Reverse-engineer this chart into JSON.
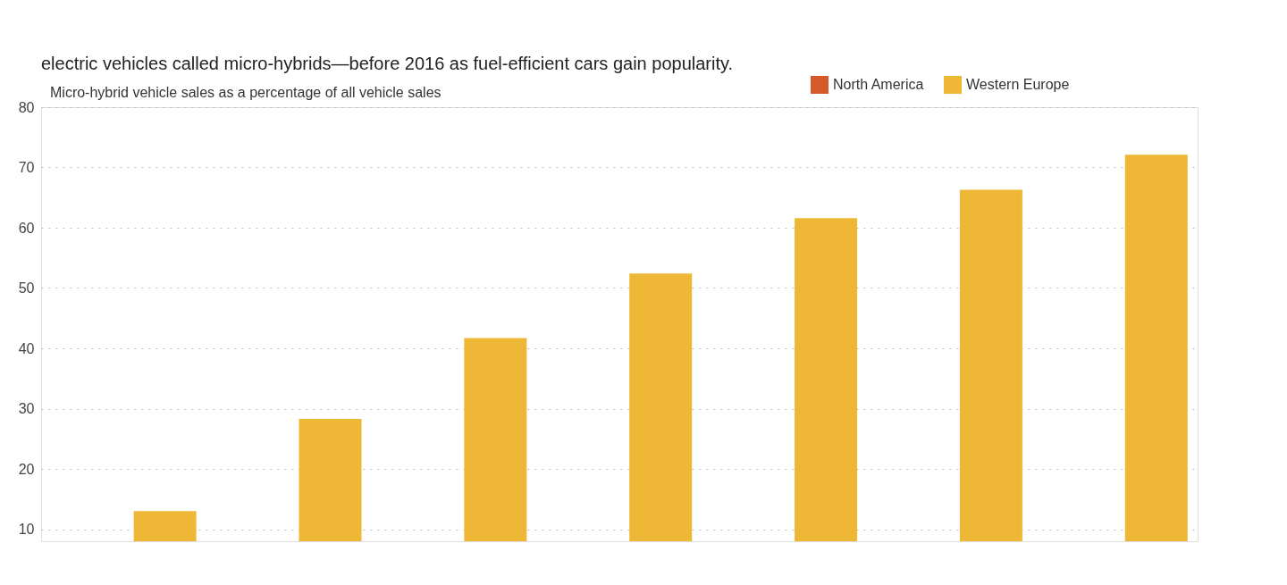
{
  "chart_data": {
    "type": "bar",
    "title": "Micro-hybrid vehicle sales as a percentage of all vehicle sales",
    "annotations": [
      "electric vehicles called micro-hybrids—before 2016 as fuel-efficient cars gain popularity."
    ],
    "categories": [
      null,
      null,
      null,
      null,
      null,
      null,
      null
    ],
    "series": [
      {
        "name": "North America",
        "color": "#d45a2a",
        "values": [
          null,
          null,
          null,
          null,
          null,
          null,
          null
        ]
      },
      {
        "name": "Western Europe",
        "color": "#eeb735",
        "values": [
          13.0,
          28.3,
          41.7,
          52.4,
          61.6,
          66.3,
          72.1
        ]
      }
    ],
    "ylim": [
      8,
      80
    ],
    "yticks": [
      10,
      20,
      30,
      40,
      50,
      60,
      70,
      80
    ],
    "grid": "y",
    "legend": "top right",
    "tick_labels": "y"
  }
}
